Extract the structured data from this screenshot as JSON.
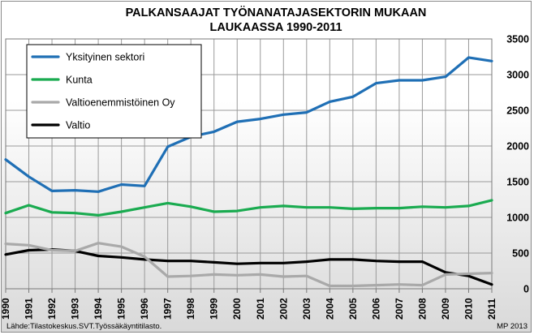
{
  "chart_data": {
    "type": "line",
    "title": [
      "PALKANSAAJAT TYÖNANATAJASEKTORIN MUKAAN",
      "LAUKAASSA 1990-2011"
    ],
    "x": [
      1990,
      1991,
      1992,
      1993,
      1994,
      1995,
      1996,
      1997,
      1998,
      1999,
      2000,
      2001,
      2002,
      2003,
      2004,
      2005,
      2006,
      2007,
      2008,
      2009,
      2010,
      2011
    ],
    "x_tick_labels": [
      "1990",
      "1991",
      "1992",
      "1993",
      "1994",
      "1995",
      "1996",
      "1997",
      "1998",
      "1999",
      "2000",
      "2001",
      "2002",
      "2003",
      "2004",
      "2005",
      "2006",
      "2007",
      "2008",
      "2009",
      "2010",
      "2011"
    ],
    "ylim": [
      0,
      3500
    ],
    "y_ticks": [
      0,
      500,
      1000,
      1500,
      2000,
      2500,
      3000,
      3500
    ],
    "y_axis_side": "right",
    "grid": true,
    "legend_position": "top-left",
    "series": [
      {
        "name": "Yksityinen sektori",
        "color": "#1f6fb5",
        "values": [
          1810,
          1570,
          1370,
          1380,
          1360,
          1460,
          1440,
          1990,
          2130,
          2200,
          2340,
          2380,
          2440,
          2470,
          2620,
          2690,
          2880,
          2920,
          2920,
          2970,
          3240,
          3190
        ]
      },
      {
        "name": "Kunta",
        "color": "#1aab50",
        "values": [
          1060,
          1170,
          1070,
          1060,
          1030,
          1080,
          1140,
          1200,
          1150,
          1080,
          1090,
          1140,
          1160,
          1140,
          1140,
          1120,
          1130,
          1130,
          1150,
          1140,
          1160,
          1240
        ]
      },
      {
        "name": "Valtioenemmistöinen Oy",
        "color": "#a9a9a9",
        "values": [
          630,
          610,
          540,
          530,
          640,
          590,
          450,
          170,
          180,
          200,
          190,
          200,
          170,
          180,
          40,
          40,
          50,
          60,
          50,
          200,
          210,
          220
        ]
      },
      {
        "name": "Valtio",
        "color": "#000000",
        "values": [
          480,
          540,
          550,
          530,
          460,
          440,
          410,
          390,
          390,
          370,
          350,
          360,
          360,
          380,
          410,
          410,
          390,
          380,
          380,
          230,
          180,
          60
        ]
      }
    ]
  },
  "footer": {
    "source": "Lähde:Tilastokeskus.SVT.Työssäkäyntitilasto.",
    "credit": "MP 2013"
  }
}
